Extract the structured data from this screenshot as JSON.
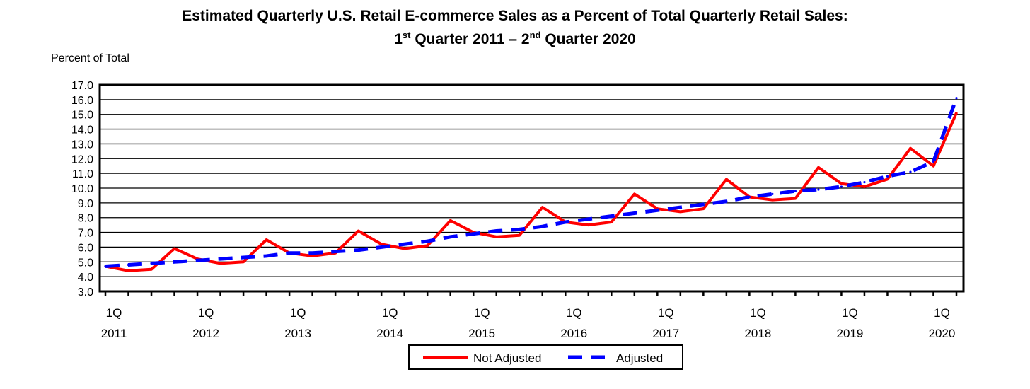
{
  "colors": {
    "not_adjusted": "#ff0000",
    "adjusted": "#0000ff",
    "grid": "#000000"
  },
  "chart_data": {
    "type": "line",
    "title_line1": "Estimated Quarterly U.S. Retail E-commerce Sales as a Percent of Total Quarterly Retail Sales:",
    "title_line2": {
      "q1_num": "1",
      "q1_sup": "st",
      "mid": " Quarter 2011 – ",
      "q2_num": "2",
      "q2_sup": "nd",
      "end": " Quarter 2020"
    },
    "ylabel": "Percent of Total",
    "ylim": [
      3.0,
      17.0
    ],
    "yticks": [
      "3.0",
      "4.0",
      "5.0",
      "6.0",
      "7.0",
      "8.0",
      "9.0",
      "10.0",
      "11.0",
      "12.0",
      "13.0",
      "14.0",
      "15.0",
      "16.0",
      "17.0"
    ],
    "x_tick_labels": [
      {
        "q": "1Q",
        "year": "2011"
      },
      {
        "q": "1Q",
        "year": "2012"
      },
      {
        "q": "1Q",
        "year": "2013"
      },
      {
        "q": "1Q",
        "year": "2014"
      },
      {
        "q": "1Q",
        "year": "2015"
      },
      {
        "q": "1Q",
        "year": "2016"
      },
      {
        "q": "1Q",
        "year": "2017"
      },
      {
        "q": "1Q",
        "year": "2018"
      },
      {
        "q": "1Q",
        "year": "2019"
      },
      {
        "q": "1Q",
        "year": "2020"
      }
    ],
    "x": [
      "2011Q1",
      "2011Q2",
      "2011Q3",
      "2011Q4",
      "2012Q1",
      "2012Q2",
      "2012Q3",
      "2012Q4",
      "2013Q1",
      "2013Q2",
      "2013Q3",
      "2013Q4",
      "2014Q1",
      "2014Q2",
      "2014Q3",
      "2014Q4",
      "2015Q1",
      "2015Q2",
      "2015Q3",
      "2015Q4",
      "2016Q1",
      "2016Q2",
      "2016Q3",
      "2016Q4",
      "2017Q1",
      "2017Q2",
      "2017Q3",
      "2017Q4",
      "2018Q1",
      "2018Q2",
      "2018Q3",
      "2018Q4",
      "2019Q1",
      "2019Q2",
      "2019Q3",
      "2019Q4",
      "2020Q1",
      "2020Q2"
    ],
    "series": [
      {
        "name": "Not Adjusted",
        "style": "solid",
        "values": [
          4.7,
          4.4,
          4.5,
          5.9,
          5.2,
          4.9,
          5.0,
          6.5,
          5.6,
          5.4,
          5.6,
          7.1,
          6.2,
          5.9,
          6.1,
          7.8,
          7.0,
          6.7,
          6.8,
          8.7,
          7.7,
          7.5,
          7.7,
          9.6,
          8.6,
          8.4,
          8.6,
          10.6,
          9.4,
          9.2,
          9.3,
          11.4,
          10.3,
          10.1,
          10.6,
          12.7,
          11.5,
          15.1
        ]
      },
      {
        "name": "Adjusted",
        "style": "dashed",
        "values": [
          4.7,
          4.8,
          4.9,
          5.0,
          5.1,
          5.2,
          5.3,
          5.4,
          5.6,
          5.6,
          5.7,
          5.8,
          6.0,
          6.2,
          6.4,
          6.7,
          6.9,
          7.1,
          7.2,
          7.4,
          7.7,
          7.9,
          8.1,
          8.3,
          8.5,
          8.7,
          8.9,
          9.1,
          9.4,
          9.6,
          9.8,
          9.9,
          10.1,
          10.4,
          10.8,
          11.1,
          11.8,
          16.1
        ]
      }
    ],
    "legend": [
      "Not Adjusted",
      "Adjusted"
    ],
    "grid": true
  }
}
